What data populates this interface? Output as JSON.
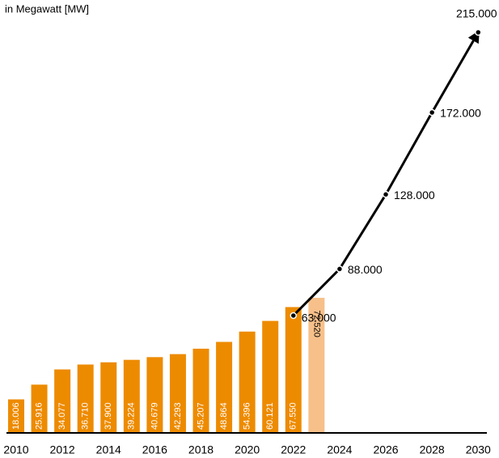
{
  "chart_data": {
    "type": "bar",
    "subtitle": "in Megawatt [MW]",
    "xlim": [
      2009.3,
      2030.9
    ],
    "xticks": [
      2010,
      2012,
      2014,
      2016,
      2018,
      2020,
      2022,
      2024,
      2026,
      2028,
      2030
    ],
    "ylim": [
      0,
      215000
    ],
    "series": [
      {
        "type": "bar",
        "color": "#ed8b00",
        "colors": [
          "#ed8b00",
          "#ed8b00",
          "#ed8b00",
          "#ed8b00",
          "#ed8b00",
          "#ed8b00",
          "#ed8b00",
          "#ed8b00",
          "#ed8b00",
          "#ed8b00",
          "#ed8b00",
          "#ed8b00",
          "#ed8b00",
          "#f7c08a"
        ],
        "x": [
          2010,
          2011,
          2012,
          2013,
          2014,
          2015,
          2016,
          2017,
          2018,
          2019,
          2020,
          2021,
          2022,
          2023
        ],
        "values": [
          18006,
          25916,
          34077,
          36710,
          37900,
          39224,
          40679,
          42293,
          45207,
          48864,
          54396,
          60121,
          67550,
          72520
        ],
        "value_labels": [
          "18.006",
          "25.916",
          "34.077",
          "36.710",
          "37.900",
          "39.224",
          "40.679",
          "42.293",
          "45.207",
          "48.864",
          "54.396",
          "60.121",
          "67.550",
          "72.520"
        ]
      },
      {
        "type": "line",
        "color": "#000000",
        "x": [
          2022,
          2024,
          2026,
          2028,
          2030
        ],
        "values": [
          63000,
          88000,
          128000,
          172000,
          215000
        ],
        "value_labels": [
          "63.000",
          "88.000",
          "128.000",
          "172.000",
          "215.000"
        ]
      }
    ]
  }
}
